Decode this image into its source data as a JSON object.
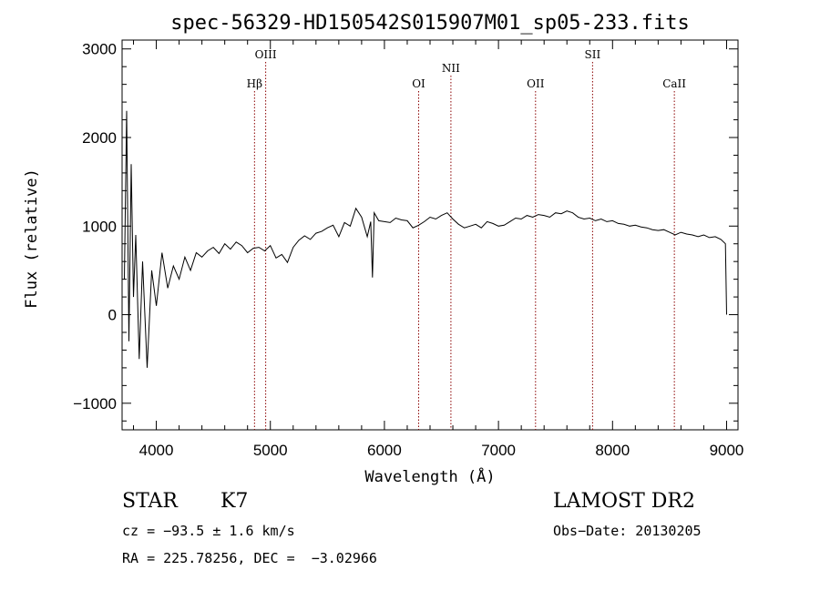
{
  "chart_data": {
    "type": "line",
    "title": "spec-56329-HD150542S015907M01_sp05-233.fits",
    "xlabel": "Wavelength (Å)",
    "ylabel": "Flux (relative)",
    "xlim": [
      3700,
      9100
    ],
    "ylim": [
      -1300,
      3100
    ],
    "x_ticks": [
      {
        "value": 4000,
        "label": "4000"
      },
      {
        "value": 5000,
        "label": "5000"
      },
      {
        "value": 6000,
        "label": "6000"
      },
      {
        "value": 7000,
        "label": "7000"
      },
      {
        "value": 8000,
        "label": "8000"
      },
      {
        "value": 9000,
        "label": "9000"
      }
    ],
    "y_ticks": [
      {
        "value": -1000,
        "label": "−1000"
      },
      {
        "value": 0,
        "label": "0"
      },
      {
        "value": 1000,
        "label": "1000"
      },
      {
        "value": 2000,
        "label": "2000"
      },
      {
        "value": 3000,
        "label": "3000"
      }
    ],
    "line_color": "#000000",
    "spectrum": {
      "x": [
        3720,
        3740,
        3760,
        3780,
        3800,
        3820,
        3850,
        3880,
        3920,
        3960,
        4000,
        4050,
        4100,
        4150,
        4200,
        4250,
        4300,
        4350,
        4400,
        4450,
        4500,
        4550,
        4600,
        4650,
        4700,
        4750,
        4800,
        4850,
        4900,
        4950,
        5000,
        5050,
        5100,
        5150,
        5200,
        5250,
        5300,
        5350,
        5400,
        5450,
        5500,
        5550,
        5600,
        5650,
        5700,
        5750,
        5800,
        5850,
        5880,
        5895,
        5910,
        5950,
        6000,
        6050,
        6100,
        6150,
        6200,
        6250,
        6300,
        6350,
        6400,
        6450,
        6500,
        6550,
        6600,
        6650,
        6700,
        6750,
        6800,
        6850,
        6900,
        6950,
        7000,
        7050,
        7100,
        7150,
        7200,
        7250,
        7300,
        7350,
        7400,
        7450,
        7500,
        7550,
        7600,
        7650,
        7700,
        7750,
        7800,
        7850,
        7900,
        7950,
        8000,
        8050,
        8100,
        8150,
        8200,
        8250,
        8300,
        8350,
        8400,
        8450,
        8500,
        8550,
        8600,
        8650,
        8700,
        8750,
        8800,
        8850,
        8900,
        8950,
        8990,
        9000
      ],
      "y": [
        400,
        2300,
        -300,
        1700,
        200,
        900,
        -500,
        600,
        -600,
        500,
        100,
        700,
        300,
        550,
        400,
        650,
        500,
        700,
        650,
        720,
        760,
        690,
        800,
        740,
        820,
        780,
        700,
        750,
        760,
        720,
        780,
        640,
        680,
        590,
        760,
        840,
        890,
        850,
        920,
        940,
        980,
        1010,
        880,
        1040,
        1000,
        1200,
        1100,
        880,
        1050,
        420,
        1150,
        1060,
        1050,
        1040,
        1090,
        1070,
        1060,
        980,
        1010,
        1050,
        1100,
        1080,
        1120,
        1150,
        1080,
        1020,
        980,
        1000,
        1020,
        980,
        1050,
        1030,
        1000,
        1010,
        1050,
        1090,
        1080,
        1120,
        1100,
        1130,
        1120,
        1100,
        1150,
        1140,
        1170,
        1150,
        1100,
        1080,
        1090,
        1060,
        1080,
        1050,
        1060,
        1030,
        1020,
        1000,
        1010,
        990,
        980,
        960,
        950,
        960,
        930,
        900,
        930,
        910,
        900,
        880,
        900,
        870,
        880,
        850,
        800,
        0
      ]
    },
    "lines": [
      {
        "label": "Hβ",
        "x": 4861,
        "tier": "low"
      },
      {
        "label": "OIII",
        "x": 4959,
        "tier": "top"
      },
      {
        "label": "OI",
        "x": 6300,
        "tier": "low"
      },
      {
        "label": "NII",
        "x": 6583,
        "tier": "mid"
      },
      {
        "label": "OII",
        "x": 7325,
        "tier": "low"
      },
      {
        "label": "SII",
        "x": 7825,
        "tier": "top"
      },
      {
        "label": "CaII",
        "x": 8542,
        "tier": "low"
      }
    ],
    "line_marker_color": "#8b0000"
  },
  "info": {
    "class": "STAR",
    "subclass": "K7",
    "survey": "LAMOST DR2",
    "cz": "cz = −93.5 ± 1.6 km/s",
    "obs_date": "Obs−Date: 20130205",
    "coords": "RA = 225.78256, DEC =  −3.02966"
  }
}
